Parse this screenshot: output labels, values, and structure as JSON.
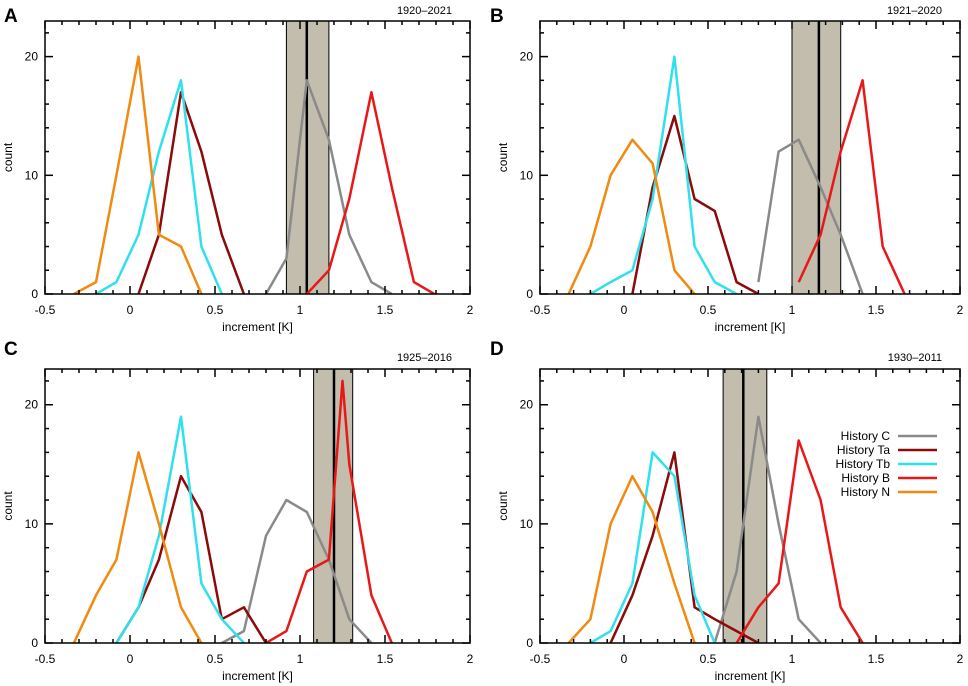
{
  "figure": {
    "legend_panel": 3
  },
  "chart_data": [
    {
      "type": "line",
      "panel_letter": "A",
      "period": "1920–2021",
      "xlabel": "increment [K]",
      "ylabel": "count",
      "xlim": [
        -0.5,
        2.0
      ],
      "ylim": [
        0,
        23
      ],
      "xticks": [
        -0.5,
        0,
        0.5,
        1,
        1.5,
        2
      ],
      "xtick_labels": [
        "-0.5",
        "0",
        "0.5",
        "1",
        "1.5",
        "2"
      ],
      "yticks": [
        0,
        10,
        20
      ],
      "ytick_labels": [
        "0",
        "10",
        "20"
      ],
      "band": {
        "from": 0.92,
        "to": 1.17,
        "color": "#c2bdac"
      },
      "vline": 1.04,
      "series": [
        {
          "name": "History C",
          "color": "#8a8a8a",
          "x": [
            0.8,
            0.92,
            1.04,
            1.17,
            1.29,
            1.42,
            1.54
          ],
          "y": [
            0,
            3,
            18,
            13,
            5,
            1,
            0
          ]
        },
        {
          "name": "History Ta",
          "color": "#8b0a0a",
          "x": [
            0.05,
            0.17,
            0.3,
            0.42,
            0.54,
            0.67
          ],
          "y": [
            0,
            5,
            17,
            12,
            5,
            0
          ]
        },
        {
          "name": "History Tb",
          "color": "#2fe0ee",
          "x": [
            -0.2,
            -0.08,
            0.05,
            0.17,
            0.3,
            0.42,
            0.54
          ],
          "y": [
            0,
            1,
            5,
            12,
            18,
            4,
            0
          ]
        },
        {
          "name": "History B",
          "color": "#e81818",
          "x": [
            1.04,
            1.17,
            1.29,
            1.42,
            1.54,
            1.67,
            1.79
          ],
          "y": [
            0,
            2,
            8,
            17,
            9,
            1,
            0
          ]
        },
        {
          "name": "History N",
          "color": "#f08a10",
          "x": [
            -0.33,
            -0.2,
            -0.08,
            0.05,
            0.17,
            0.3,
            0.42
          ],
          "y": [
            0,
            1,
            10,
            20,
            5,
            4,
            0
          ]
        }
      ]
    },
    {
      "type": "line",
      "panel_letter": "B",
      "period": "1921–2020",
      "xlabel": "increment [K]",
      "ylabel": "count",
      "xlim": [
        -0.5,
        2.0
      ],
      "ylim": [
        0,
        23
      ],
      "xticks": [
        -0.5,
        0,
        0.5,
        1,
        1.5,
        2
      ],
      "xtick_labels": [
        "-0.5",
        "0",
        "0.5",
        "1",
        "1.5",
        "2"
      ],
      "yticks": [
        0,
        10,
        20
      ],
      "ytick_labels": [
        "0",
        "10",
        "20"
      ],
      "band": {
        "from": 1.0,
        "to": 1.29,
        "color": "#c2bdac"
      },
      "vline": 1.16,
      "series": [
        {
          "name": "History C",
          "color": "#8a8a8a",
          "x": [
            0.8,
            0.92,
            1.04,
            1.17,
            1.29,
            1.42
          ],
          "y": [
            1,
            12,
            13,
            9,
            5,
            0
          ]
        },
        {
          "name": "History Ta",
          "color": "#8b0a0a",
          "x": [
            0.05,
            0.17,
            0.3,
            0.42,
            0.54,
            0.67,
            0.8
          ],
          "y": [
            0,
            9,
            15,
            8,
            7,
            1,
            0
          ]
        },
        {
          "name": "History Tb",
          "color": "#2fe0ee",
          "x": [
            -0.2,
            -0.08,
            0.05,
            0.17,
            0.3,
            0.42,
            0.54,
            0.67
          ],
          "y": [
            0,
            1,
            2,
            8,
            20,
            4,
            1,
            0
          ]
        },
        {
          "name": "History B",
          "color": "#e81818",
          "x": [
            1.04,
            1.17,
            1.29,
            1.42,
            1.54,
            1.67
          ],
          "y": [
            1,
            5,
            12,
            18,
            4,
            0
          ]
        },
        {
          "name": "History N",
          "color": "#f08a10",
          "x": [
            -0.33,
            -0.2,
            -0.08,
            0.05,
            0.17,
            0.3,
            0.42
          ],
          "y": [
            0,
            4,
            10,
            13,
            11,
            2,
            0
          ]
        }
      ]
    },
    {
      "type": "line",
      "panel_letter": "C",
      "period": "1925–2016",
      "xlabel": "increment [K]",
      "ylabel": "count",
      "xlim": [
        -0.5,
        2.0
      ],
      "ylim": [
        0,
        23
      ],
      "xticks": [
        -0.5,
        0,
        0.5,
        1,
        1.5,
        2
      ],
      "xtick_labels": [
        "-0.5",
        "0",
        "0.5",
        "1",
        "1.5",
        "2"
      ],
      "yticks": [
        0,
        10,
        20
      ],
      "ytick_labels": [
        "0",
        "10",
        "20"
      ],
      "band": {
        "from": 1.08,
        "to": 1.31,
        "color": "#c2bdac"
      },
      "vline": 1.2,
      "series": [
        {
          "name": "History C",
          "color": "#8a8a8a",
          "x": [
            0.54,
            0.67,
            0.8,
            0.92,
            1.04,
            1.17,
            1.29,
            1.42
          ],
          "y": [
            0,
            1,
            9,
            12,
            11,
            7,
            2,
            0
          ]
        },
        {
          "name": "History Ta",
          "color": "#8b0a0a",
          "x": [
            -0.08,
            0.05,
            0.17,
            0.3,
            0.42,
            0.54,
            0.67,
            0.8
          ],
          "y": [
            0,
            3,
            7,
            14,
            11,
            2,
            3,
            0
          ]
        },
        {
          "name": "History Tb",
          "color": "#2fe0ee",
          "x": [
            -0.08,
            0.05,
            0.17,
            0.3,
            0.42,
            0.54,
            0.67
          ],
          "y": [
            0,
            3,
            9,
            19,
            5,
            2,
            0
          ]
        },
        {
          "name": "History B",
          "color": "#e81818",
          "x": [
            0.8,
            0.92,
            1.04,
            1.17,
            1.25,
            1.29,
            1.42,
            1.54
          ],
          "y": [
            0,
            1,
            6,
            7,
            22,
            15,
            4,
            0
          ]
        },
        {
          "name": "History N",
          "color": "#f08a10",
          "x": [
            -0.33,
            -0.2,
            -0.08,
            0.05,
            0.17,
            0.3,
            0.42
          ],
          "y": [
            0,
            4,
            7,
            16,
            10,
            3,
            0
          ]
        }
      ]
    },
    {
      "type": "line",
      "panel_letter": "D",
      "period": "1930–2011",
      "xlabel": "increment [K]",
      "ylabel": "count",
      "xlim": [
        -0.5,
        2.0
      ],
      "ylim": [
        0,
        23
      ],
      "xticks": [
        -0.5,
        0,
        0.5,
        1,
        1.5,
        2
      ],
      "xtick_labels": [
        "-0.5",
        "0",
        "0.5",
        "1",
        "1.5",
        "2"
      ],
      "yticks": [
        0,
        10,
        20
      ],
      "ytick_labels": [
        "0",
        "10",
        "20"
      ],
      "band": {
        "from": 0.59,
        "to": 0.85,
        "color": "#c2bdac"
      },
      "vline": 0.71,
      "legend": "right",
      "series": [
        {
          "name": "History C",
          "color": "#8a8a8a",
          "x": [
            0.54,
            0.67,
            0.8,
            0.92,
            1.04,
            1.17
          ],
          "y": [
            0,
            6,
            19,
            10,
            2,
            0
          ]
        },
        {
          "name": "History Ta",
          "color": "#8b0a0a",
          "x": [
            -0.08,
            0.05,
            0.17,
            0.3,
            0.42,
            0.54,
            0.67,
            0.8
          ],
          "y": [
            0,
            4,
            9,
            16,
            3,
            2,
            1,
            0
          ]
        },
        {
          "name": "History Tb",
          "color": "#2fe0ee",
          "x": [
            -0.2,
            -0.08,
            0.05,
            0.17,
            0.3,
            0.42,
            0.54
          ],
          "y": [
            0,
            1,
            5,
            16,
            14,
            4,
            0
          ]
        },
        {
          "name": "History B",
          "color": "#e81818",
          "x": [
            0.67,
            0.8,
            0.92,
            1.04,
            1.17,
            1.29,
            1.42
          ],
          "y": [
            0,
            3,
            5,
            17,
            12,
            3,
            0
          ]
        },
        {
          "name": "History N",
          "color": "#f08a10",
          "x": [
            -0.33,
            -0.2,
            -0.08,
            0.05,
            0.17,
            0.3,
            0.42
          ],
          "y": [
            0,
            2,
            10,
            14,
            11,
            5,
            0
          ]
        }
      ]
    }
  ]
}
